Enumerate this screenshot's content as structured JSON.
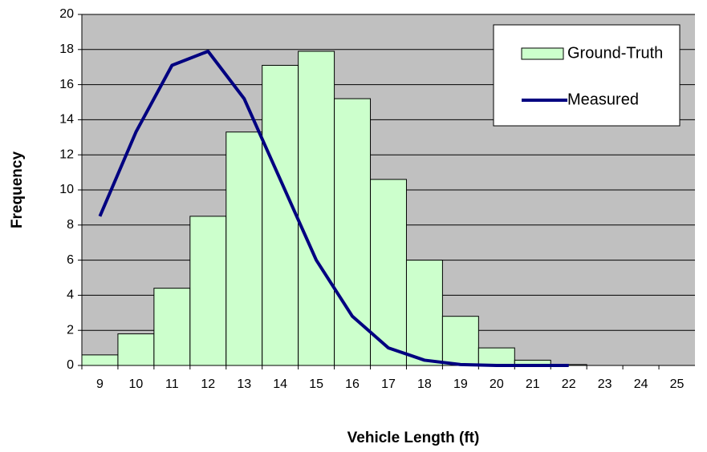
{
  "chart_data": {
    "type": "bar",
    "x_label": "Vehicle Length (ft)",
    "y_label": "Frequency",
    "categories": [
      "9",
      "10",
      "11",
      "12",
      "13",
      "14",
      "15",
      "16",
      "17",
      "18",
      "19",
      "20",
      "21",
      "22",
      "23",
      "24",
      "25"
    ],
    "series": [
      {
        "name": "Ground-Truth",
        "type": "bar",
        "color": "#ccffcc",
        "values": [
          0.6,
          1.8,
          4.4,
          8.5,
          13.3,
          17.1,
          17.9,
          15.2,
          10.6,
          6.0,
          2.8,
          1.0,
          0.3,
          0.05,
          0,
          0,
          0
        ]
      },
      {
        "name": "Measured",
        "type": "line",
        "color": "#000080",
        "values": [
          8.5,
          13.3,
          17.1,
          17.9,
          15.2,
          10.6,
          6.0,
          2.8,
          1.0,
          0.3,
          0.05,
          0,
          0,
          0,
          null,
          null,
          null
        ]
      }
    ],
    "ylim": [
      0,
      20
    ],
    "yticks": [
      0,
      2,
      4,
      6,
      8,
      10,
      12,
      14,
      16,
      18,
      20
    ],
    "grid": true,
    "legend": "upper right"
  }
}
